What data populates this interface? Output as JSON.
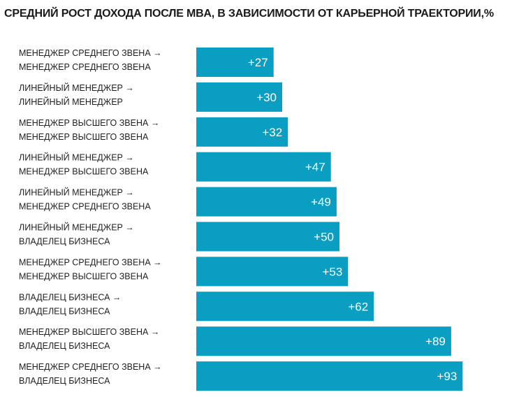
{
  "chart_data": {
    "type": "bar",
    "orientation": "horizontal",
    "title": "СРЕДНИЙ РОСТ ДОХОДА ПОСЛЕ MBA, В ЗАВИСИМОСТИ ОТ КАРЬЕРНОЙ ТРАЕКТОРИИ,%",
    "bar_color": "#0a9ec3",
    "value_prefix": "+",
    "categories": [
      [
        "МЕНЕДЖЕР СРЕДНЕГО ЗВЕНА →",
        "МЕНЕДЖЕР СРЕДНЕГО ЗВЕНА"
      ],
      [
        "ЛИНЕЙНЫЙ МЕНЕДЖЕР →",
        "ЛИНЕЙНЫЙ МЕНЕДЖЕР"
      ],
      [
        "МЕНЕДЖЕР ВЫСШЕГО ЗВЕНА →",
        "МЕНЕДЖЕР ВЫСШЕГО ЗВЕНА"
      ],
      [
        "ЛИНЕЙНЫЙ МЕНЕДЖЕР →",
        "МЕНЕДЖЕР ВЫСШЕГО ЗВЕНА"
      ],
      [
        "ЛИНЕЙНЫЙ МЕНЕДЖЕР →",
        "МЕНЕДЖЕР СРЕДНЕГО ЗВЕНА"
      ],
      [
        "ЛИНЕЙНЫЙ МЕНЕДЖЕР →",
        "ВЛАДЕЛЕЦ БИЗНЕСА"
      ],
      [
        "МЕНЕДЖЕР СРЕДНЕГО ЗВЕНА →",
        "МЕНЕДЖЕР ВЫСШЕГО ЗВЕНА"
      ],
      [
        "ВЛАДЕЛЕЦ БИЗНЕСА →",
        "ВЛАДЕЛЕЦ БИЗНЕСА"
      ],
      [
        "МЕНЕДЖЕР ВЫСШЕГО ЗВЕНА →",
        "ВЛАДЕЛЕЦ БИЗНЕСА"
      ],
      [
        "МЕНЕДЖЕР СРЕДНЕГО ЗВЕНА →",
        "ВЛАДЕЛЕЦ БИЗНЕСА"
      ]
    ],
    "values": [
      27,
      30,
      32,
      47,
      49,
      50,
      53,
      62,
      89,
      93
    ]
  }
}
